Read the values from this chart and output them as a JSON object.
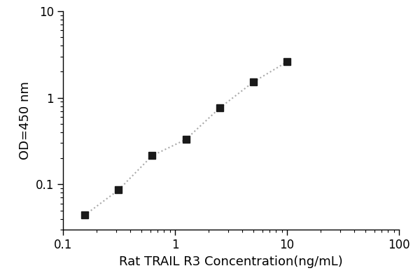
{
  "x_values": [
    0.156,
    0.313,
    0.625,
    1.25,
    2.5,
    5.0,
    10.0
  ],
  "y_values": [
    0.044,
    0.086,
    0.214,
    0.33,
    0.76,
    1.52,
    2.6
  ],
  "xlabel": "Rat TRAIL R3 Concentration(ng/mL)",
  "ylabel": "OD=450 nm",
  "xlim": [
    0.1,
    100
  ],
  "ylim": [
    0.03,
    10
  ],
  "line_color": "#aaaaaa",
  "marker_color": "#1a1a1a",
  "marker": "s",
  "marker_size": 7,
  "line_style": ":",
  "line_width": 1.5,
  "background_color": "#ffffff",
  "xlabel_fontsize": 13,
  "ylabel_fontsize": 13,
  "tick_fontsize": 12
}
